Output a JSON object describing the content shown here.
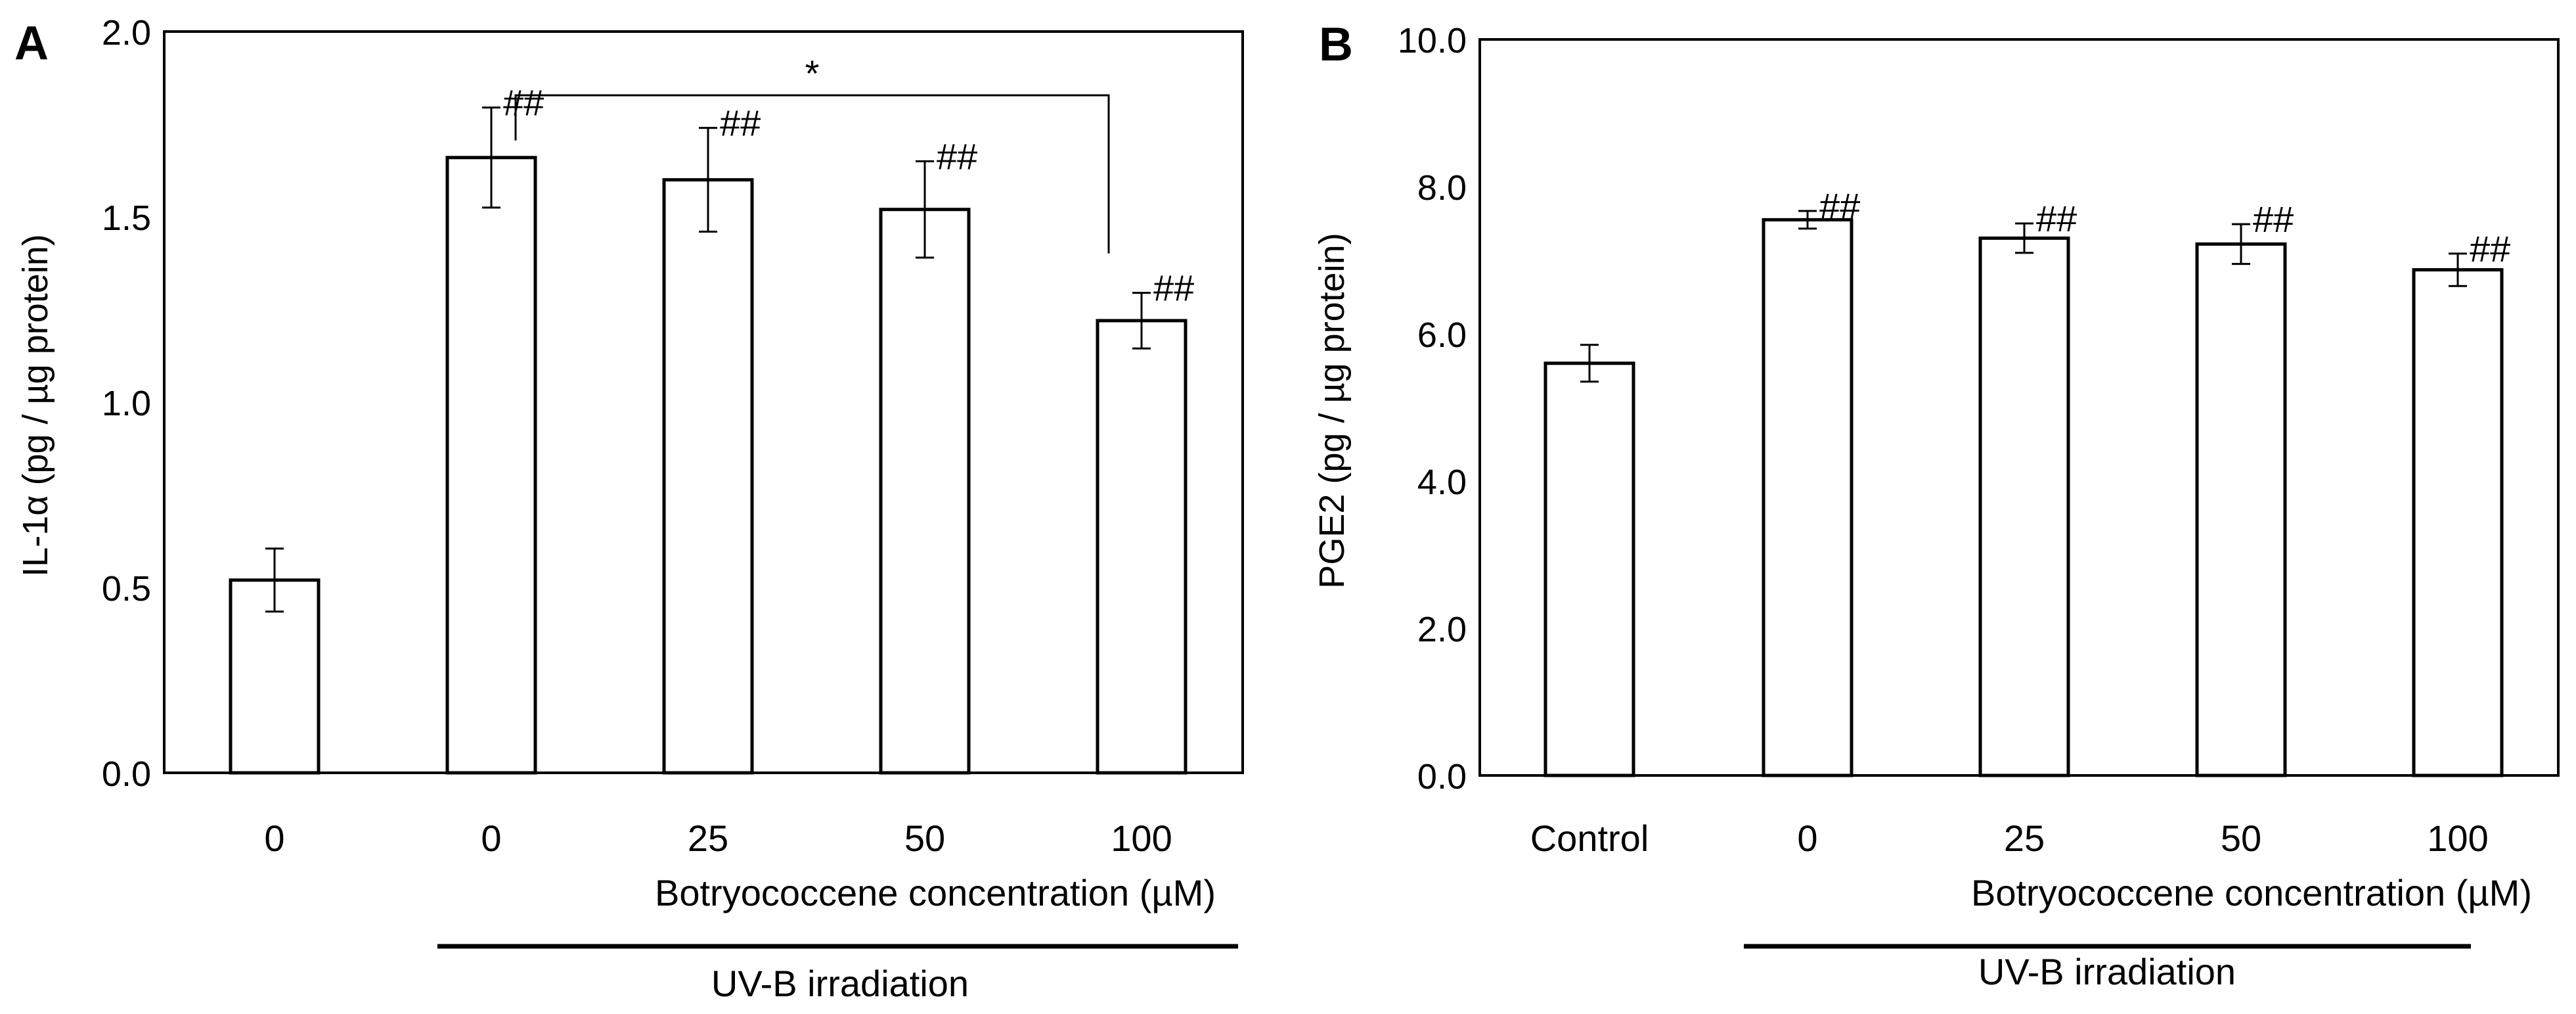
{
  "chart_data": [
    {
      "panel_label": "A",
      "type": "bar",
      "ylabel": "IL-1α (pg / µg protein)",
      "ylim": [
        0,
        2
      ],
      "yticks": [
        "0.0",
        "0.5",
        "1.0",
        "1.5",
        "2.0"
      ],
      "ytick_values": [
        0,
        0.5,
        1.0,
        1.5,
        2.0
      ],
      "categories": [
        "0",
        "0",
        "25",
        "50",
        "100"
      ],
      "values": [
        0.52,
        1.66,
        1.6,
        1.52,
        1.22
      ],
      "errors": [
        0.085,
        0.135,
        0.14,
        0.13,
        0.075
      ],
      "annotations": [
        "",
        "##",
        "##",
        "##",
        "##"
      ],
      "significance": {
        "label": "*",
        "between": [
          1,
          4
        ]
      },
      "xlabel": "Botryococcene concentration (µM)",
      "group_label": "UV-B irradiation",
      "group_range": [
        1,
        4
      ]
    },
    {
      "panel_label": "B",
      "type": "bar",
      "ylabel": "PGE2 (pg / µg protein)",
      "ylim": [
        0,
        10
      ],
      "yticks": [
        "0.0",
        "2.0",
        "4.0",
        "6.0",
        "8.0",
        "10.0"
      ],
      "ytick_values": [
        0,
        2,
        4,
        6,
        8,
        10
      ],
      "categories": [
        "Control",
        "0",
        "25",
        "50",
        "100"
      ],
      "values": [
        5.6,
        7.55,
        7.3,
        7.22,
        6.87
      ],
      "errors": [
        0.25,
        0.12,
        0.2,
        0.27,
        0.22
      ],
      "annotations": [
        "",
        "##",
        "##",
        "##",
        "##"
      ],
      "xlabel": "Botryococcene concentration (µM)",
      "group_label": "UV-B irradiation",
      "group_range": [
        1,
        4
      ]
    }
  ]
}
